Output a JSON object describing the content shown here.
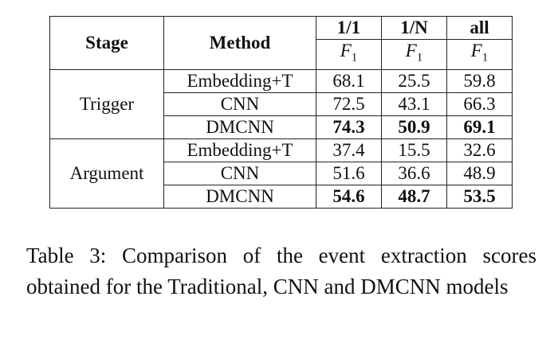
{
  "table": {
    "header": [
      "Stage",
      "Method",
      "1/1",
      "1/N",
      "all"
    ],
    "subheader": [
      {
        "symbol": "F",
        "subscript": "1"
      },
      {
        "symbol": "F",
        "subscript": "1"
      },
      {
        "symbol": "F",
        "subscript": "1"
      }
    ],
    "groups": [
      {
        "stage": "Trigger",
        "rows": [
          [
            "Embedding+T",
            68.1,
            25.5,
            59.8
          ],
          [
            "CNN",
            72.5,
            43.1,
            66.3
          ],
          [
            "DMCNN",
            74.3,
            50.9,
            69.1
          ]
        ]
      },
      {
        "stage": "Argument",
        "rows": [
          [
            "Embedding+T",
            37.4,
            15.5,
            32.6
          ],
          [
            "CNN",
            51.6,
            36.6,
            48.9
          ],
          [
            "DMCNN",
            54.6,
            48.7,
            53.5
          ]
        ]
      }
    ]
  },
  "caption": "Table 3: Comparison of the event extraction scores obtained for the Traditional, CNN and DMCNN models"
}
